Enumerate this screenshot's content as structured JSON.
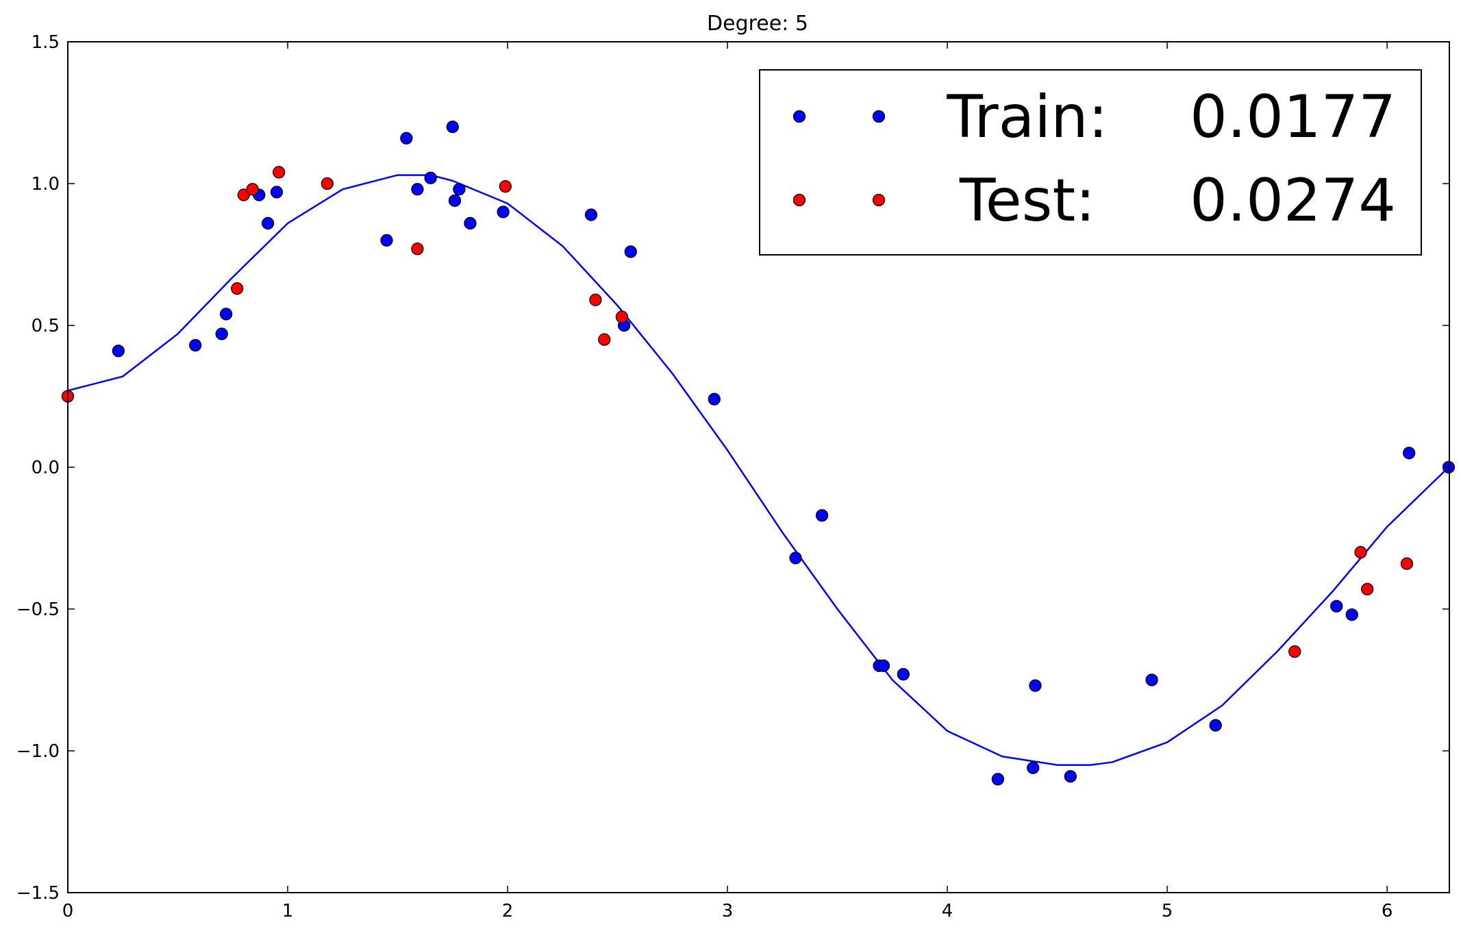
{
  "chart_data": {
    "type": "scatter",
    "title": "Degree: 5",
    "xlabel": "",
    "ylabel": "",
    "xlim": [
      0,
      6.2832
    ],
    "ylim": [
      -1.5,
      1.5
    ],
    "x_ticks": [
      0,
      1,
      2,
      3,
      4,
      5,
      6
    ],
    "x_tick_labels": [
      "0",
      "1",
      "2",
      "3",
      "4",
      "5",
      "6"
    ],
    "y_ticks": [
      1.5,
      1.0,
      0.5,
      0.0,
      -0.5,
      -1.0,
      -1.5
    ],
    "y_tick_labels": [
      "1.5",
      "1.0",
      "0.5",
      "0.0",
      "−0.5",
      "−1.0",
      "−1.5"
    ],
    "grid": false,
    "legend_position": "top-right",
    "series": [
      {
        "name": "Train:",
        "score": "0.0177",
        "type": "scatter",
        "color": "#0000ff",
        "points": [
          [
            0.23,
            0.41
          ],
          [
            0.58,
            0.43
          ],
          [
            0.7,
            0.47
          ],
          [
            0.72,
            0.54
          ],
          [
            0.87,
            0.96
          ],
          [
            0.91,
            0.86
          ],
          [
            0.95,
            0.97
          ],
          [
            1.45,
            0.8
          ],
          [
            1.54,
            1.16
          ],
          [
            1.59,
            0.98
          ],
          [
            1.65,
            1.02
          ],
          [
            1.75,
            1.2
          ],
          [
            1.76,
            0.94
          ],
          [
            1.78,
            0.98
          ],
          [
            1.83,
            0.86
          ],
          [
            1.98,
            0.9
          ],
          [
            2.38,
            0.89
          ],
          [
            2.53,
            0.5
          ],
          [
            2.56,
            0.76
          ],
          [
            2.94,
            0.24
          ],
          [
            3.31,
            -0.32
          ],
          [
            3.43,
            -0.17
          ],
          [
            3.69,
            -0.7
          ],
          [
            3.71,
            -0.7
          ],
          [
            3.8,
            -0.73
          ],
          [
            4.23,
            -1.1
          ],
          [
            4.39,
            -1.06
          ],
          [
            4.4,
            -0.77
          ],
          [
            4.56,
            -1.09
          ],
          [
            4.93,
            -0.75
          ],
          [
            5.22,
            -0.91
          ],
          [
            5.77,
            -0.49
          ],
          [
            5.84,
            -0.52
          ],
          [
            6.1,
            0.05
          ],
          [
            6.28,
            0.0
          ]
        ]
      },
      {
        "name": "Test:",
        "score": "0.0274",
        "type": "scatter",
        "color": "#ff0000",
        "points": [
          [
            0.0,
            0.25
          ],
          [
            0.77,
            0.63
          ],
          [
            0.8,
            0.96
          ],
          [
            0.84,
            0.98
          ],
          [
            0.96,
            1.04
          ],
          [
            1.18,
            1.0
          ],
          [
            1.59,
            0.77
          ],
          [
            1.99,
            0.99
          ],
          [
            2.4,
            0.59
          ],
          [
            2.44,
            0.45
          ],
          [
            2.52,
            0.53
          ],
          [
            5.58,
            -0.65
          ],
          [
            5.88,
            -0.3
          ],
          [
            5.91,
            -0.43
          ],
          [
            6.09,
            -0.34
          ]
        ]
      },
      {
        "name": "",
        "type": "line",
        "color": "#0000ff",
        "x": [
          0.0,
          0.25,
          0.5,
          0.75,
          1.0,
          1.25,
          1.5,
          1.65,
          1.75,
          2.0,
          2.25,
          2.5,
          2.75,
          3.0,
          3.25,
          3.5,
          3.75,
          4.0,
          4.25,
          4.5,
          4.65,
          4.75,
          5.0,
          5.25,
          5.5,
          5.75,
          6.0,
          6.28
        ],
        "y": [
          0.27,
          0.32,
          0.47,
          0.67,
          0.86,
          0.98,
          1.03,
          1.03,
          1.01,
          0.93,
          0.78,
          0.57,
          0.33,
          0.06,
          -0.23,
          -0.5,
          -0.75,
          -0.93,
          -1.02,
          -1.05,
          -1.05,
          -1.04,
          -0.97,
          -0.84,
          -0.65,
          -0.44,
          -0.21,
          0.0
        ]
      }
    ]
  }
}
